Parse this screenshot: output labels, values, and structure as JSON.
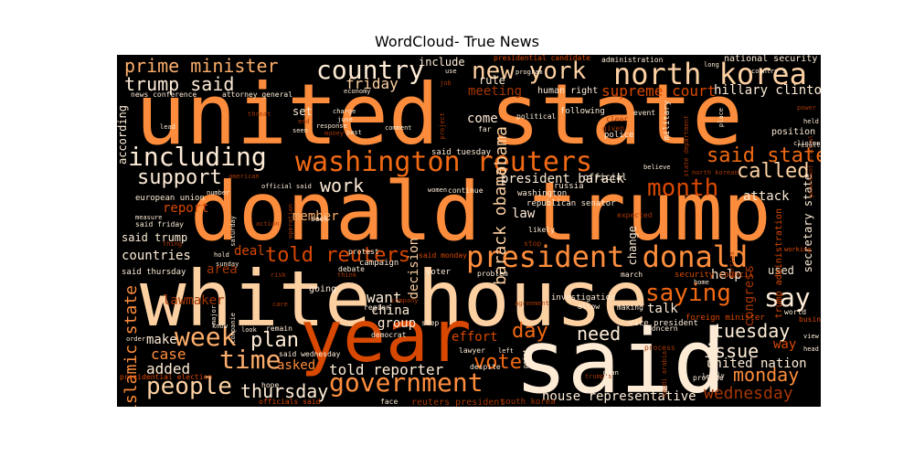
{
  "title": "WordCloud- True News",
  "colors": {
    "panel_background": "#000000",
    "palette": [
      "#fdebd6",
      "#fdd0a2",
      "#fdae6b",
      "#fd8d3c",
      "#f16913",
      "#d94801",
      "#a63603",
      "#7f2704"
    ]
  },
  "words": [
    {
      "text": "united state",
      "color": "#fd8d3c"
    },
    {
      "text": "donald trump",
      "color": "#fd8d3c"
    },
    {
      "text": "white house",
      "color": "#fdd0a2"
    },
    {
      "text": "year",
      "color": "#d94801"
    },
    {
      "text": "said",
      "color": "#fdebd6"
    },
    {
      "text": "north korea",
      "color": "#fdd0a2"
    },
    {
      "text": "washington reuters",
      "color": "#f16913"
    },
    {
      "text": "president donald",
      "color": "#fd8d3c"
    },
    {
      "text": "new york",
      "color": "#fdd0a2"
    },
    {
      "text": "country",
      "color": "#fdebd6"
    },
    {
      "text": "prime minister",
      "color": "#fdae6b"
    },
    {
      "text": "trump said",
      "color": "#fdebd6"
    },
    {
      "text": "including",
      "color": "#fdebd6"
    },
    {
      "text": "support",
      "color": "#fdebd6"
    },
    {
      "text": "government",
      "color": "#fd8d3c"
    },
    {
      "text": "people",
      "color": "#fdd0a2"
    },
    {
      "text": "week",
      "color": "#fdae6b"
    },
    {
      "text": "time",
      "color": "#fdae6b"
    },
    {
      "text": "say",
      "color": "#fdebd6"
    },
    {
      "text": "saying",
      "color": "#f16913"
    },
    {
      "text": "month",
      "color": "#d94801"
    },
    {
      "text": "called",
      "color": "#fdd0a2"
    },
    {
      "text": "said statement",
      "color": "#f16913"
    },
    {
      "text": "told reuters",
      "color": "#d94801"
    },
    {
      "text": "obama",
      "color": "#fdd0a2"
    },
    {
      "text": "barack obama",
      "color": "#fdd0a2"
    },
    {
      "text": "islamic state",
      "color": "#fd8d3c"
    },
    {
      "text": "work",
      "color": "#fdebd6"
    },
    {
      "text": "thursday",
      "color": "#fdebd6"
    },
    {
      "text": "told reporter",
      "color": "#fdebd6"
    },
    {
      "text": "vote",
      "color": "#f16913"
    },
    {
      "text": "need",
      "color": "#fdebd6"
    },
    {
      "text": "day",
      "color": "#f16913"
    },
    {
      "text": "tuesday",
      "color": "#fdebd6"
    },
    {
      "text": "issue",
      "color": "#fdebd6"
    },
    {
      "text": "monday",
      "color": "#fd8d3c"
    },
    {
      "text": "wednesday",
      "color": "#a63603"
    },
    {
      "text": "plan",
      "color": "#fdebd6"
    },
    {
      "text": "friday",
      "color": "#fdd0a2"
    },
    {
      "text": "meeting",
      "color": "#a63603"
    },
    {
      "text": "supreme court",
      "color": "#d94801"
    },
    {
      "text": "hillary clinton",
      "color": "#fdebd6"
    },
    {
      "text": "president barack",
      "color": "#fdebd6"
    },
    {
      "text": "come",
      "color": "#fdebd6"
    },
    {
      "text": "law",
      "color": "#fdebd6"
    },
    {
      "text": "want",
      "color": "#fdebd6"
    },
    {
      "text": "china",
      "color": "#fdebd6"
    },
    {
      "text": "group",
      "color": "#fdebd6"
    },
    {
      "text": "effort",
      "color": "#d94801"
    },
    {
      "text": "asked",
      "color": "#fd8d3c"
    },
    {
      "text": "added",
      "color": "#fdebd6"
    },
    {
      "text": "case",
      "color": "#fd8d3c"
    },
    {
      "text": "make",
      "color": "#fdebd6"
    },
    {
      "text": "report",
      "color": "#d94801"
    },
    {
      "text": "countries",
      "color": "#fdebd6"
    },
    {
      "text": "said trump",
      "color": "#fdebd6"
    },
    {
      "text": "member",
      "color": "#fdae6b"
    },
    {
      "text": "deal",
      "color": "#d94801"
    },
    {
      "text": "area",
      "color": "#a63603"
    },
    {
      "text": "lawmaker",
      "color": "#a63603"
    },
    {
      "text": "talk",
      "color": "#fdebd6"
    },
    {
      "text": "help",
      "color": "#fdebd6"
    },
    {
      "text": "attack",
      "color": "#fdebd6"
    },
    {
      "text": "way",
      "color": "#d94801"
    },
    {
      "text": "united nation",
      "color": "#fdebd6"
    },
    {
      "text": "house representative",
      "color": "#fdebd6"
    },
    {
      "text": "secretary state",
      "color": "#fdebd6"
    },
    {
      "text": "congress",
      "color": "#a63603"
    },
    {
      "text": "used",
      "color": "#fdebd6"
    },
    {
      "text": "change",
      "color": "#fdebd6"
    },
    {
      "text": "decision",
      "color": "#fdd0a2"
    },
    {
      "text": "according",
      "color": "#fdebd6"
    },
    {
      "text": "set",
      "color": "#fdebd6"
    },
    {
      "text": "include",
      "color": "#fdebd6"
    },
    {
      "text": "rule",
      "color": "#fdebd6"
    },
    {
      "text": "human right",
      "color": "#fdebd6"
    },
    {
      "text": "national security",
      "color": "#fdebd6"
    },
    {
      "text": "presidential candidate",
      "color": "#d94801"
    },
    {
      "text": "administration",
      "color": "#fdebd6"
    },
    {
      "text": "position",
      "color": "#fdebd6"
    },
    {
      "text": "official",
      "color": "#fdebd6"
    },
    {
      "text": "said tuesday",
      "color": "#fdebd6"
    },
    {
      "text": "washington",
      "color": "#fdebd6"
    },
    {
      "text": "russia",
      "color": "#fdebd6"
    },
    {
      "text": "republican senator",
      "color": "#fdebd6"
    },
    {
      "text": "vice president",
      "color": "#fdebd6"
    },
    {
      "text": "concern",
      "color": "#fdebd6"
    },
    {
      "text": "security council",
      "color": "#d94801"
    },
    {
      "text": "foreign minister",
      "color": "#d94801"
    },
    {
      "text": "world",
      "color": "#fdebd6"
    },
    {
      "text": "business",
      "color": "#d94801"
    },
    {
      "text": "presidential election",
      "color": "#d94801"
    },
    {
      "text": "reuters president",
      "color": "#a63603"
    },
    {
      "text": "south korea",
      "color": "#a63603"
    },
    {
      "text": "officials said",
      "color": "#d94801"
    },
    {
      "text": "european union",
      "color": "#fdebd6"
    },
    {
      "text": "said friday",
      "color": "#fdebd6"
    },
    {
      "text": "said thursday",
      "color": "#fdebd6"
    },
    {
      "text": "said wednesday",
      "color": "#fdebd6"
    },
    {
      "text": "said monday",
      "color": "#d94801"
    },
    {
      "text": "news conference",
      "color": "#fdebd6"
    },
    {
      "text": "attorney general",
      "color": "#fdebd6"
    },
    {
      "text": "going",
      "color": "#fdebd6"
    },
    {
      "text": "investigation",
      "color": "#fdebd6"
    },
    {
      "text": "following",
      "color": "#fdebd6"
    },
    {
      "text": "military",
      "color": "#fdebd6"
    },
    {
      "text": "police",
      "color": "#fdebd6"
    },
    {
      "text": "economy",
      "color": "#fdebd6"
    },
    {
      "text": "response",
      "color": "#fdebd6"
    },
    {
      "text": "campaign",
      "color": "#fdebd6"
    },
    {
      "text": "voter",
      "color": "#fdebd6"
    },
    {
      "text": "lawyer",
      "color": "#fdebd6"
    },
    {
      "text": "despite",
      "color": "#fdebd6"
    },
    {
      "text": "face",
      "color": "#fdebd6"
    },
    {
      "text": "hope",
      "color": "#fdebd6"
    },
    {
      "text": "provide",
      "color": "#fdebd6"
    },
    {
      "text": "process",
      "color": "#a63603"
    },
    {
      "text": "seek",
      "color": "#fdebd6"
    },
    {
      "text": "remain",
      "color": "#fdebd6"
    },
    {
      "text": "continue",
      "color": "#fdebd6"
    },
    {
      "text": "women",
      "color": "#fdebd6"
    },
    {
      "text": "problem",
      "color": "#fdebd6"
    },
    {
      "text": "debate",
      "color": "#fdebd6"
    },
    {
      "text": "protest",
      "color": "#fdebd6"
    },
    {
      "text": "likely",
      "color": "#fdebd6"
    },
    {
      "text": "stop",
      "color": "#a63603"
    },
    {
      "text": "expected",
      "color": "#a63603"
    },
    {
      "text": "step",
      "color": "#fdebd6"
    },
    {
      "text": "democrat",
      "color": "#fdebd6"
    },
    {
      "text": "region",
      "color": "#fdebd6"
    },
    {
      "text": "allow",
      "color": "#fdebd6"
    },
    {
      "text": "making",
      "color": "#fdebd6"
    },
    {
      "text": "march",
      "color": "#fdebd6"
    },
    {
      "text": "event",
      "color": "#fdebd6"
    },
    {
      "text": "clear",
      "color": "#a63603"
    },
    {
      "text": "given",
      "color": "#a63603"
    },
    {
      "text": "political",
      "color": "#fdebd6"
    },
    {
      "text": "far",
      "color": "#fdebd6"
    },
    {
      "text": "comment",
      "color": "#fdebd6"
    },
    {
      "text": "past",
      "color": "#fdebd6"
    },
    {
      "text": "charge",
      "color": "#fdebd6"
    },
    {
      "text": "june",
      "color": "#fdebd6"
    },
    {
      "text": "seen",
      "color": "#fdebd6"
    },
    {
      "text": "end",
      "color": "#a63603"
    },
    {
      "text": "threat",
      "color": "#a63603"
    },
    {
      "text": "lead",
      "color": "#fdebd6"
    },
    {
      "text": "number",
      "color": "#fdebd6"
    },
    {
      "text": "measure",
      "color": "#fdebd6"
    },
    {
      "text": "thing",
      "color": "#a63603"
    },
    {
      "text": "hold",
      "color": "#fdebd6"
    },
    {
      "text": "sunday",
      "color": "#fdebd6"
    },
    {
      "text": "look",
      "color": "#fdebd6"
    },
    {
      "text": "know",
      "color": "#fdebd6"
    },
    {
      "text": "order",
      "color": "#fdebd6"
    },
    {
      "text": "risk",
      "color": "#a63603"
    },
    {
      "text": "major",
      "color": "#fdebd6"
    },
    {
      "text": "care",
      "color": "#a63603"
    },
    {
      "text": "head",
      "color": "#fdebd6"
    },
    {
      "text": "view",
      "color": "#fdebd6"
    },
    {
      "text": "result",
      "color": "#fdebd6"
    },
    {
      "text": "power",
      "color": "#a63603"
    },
    {
      "text": "held",
      "color": "#fdebd6"
    },
    {
      "text": "clinton",
      "color": "#fdebd6"
    },
    {
      "text": "place",
      "color": "#fdebd6"
    },
    {
      "text": "believe",
      "color": "#fdebd6"
    },
    {
      "text": "north korean",
      "color": "#a63603"
    },
    {
      "text": "state department",
      "color": "#a63603"
    },
    {
      "text": "long",
      "color": "#fdebd6"
    },
    {
      "text": "working",
      "color": "#d94801"
    },
    {
      "text": "july",
      "color": "#fdebd6"
    },
    {
      "text": "led",
      "color": "#fdebd6"
    },
    {
      "text": "home",
      "color": "#fdebd6"
    },
    {
      "text": "job",
      "color": "#a63603"
    },
    {
      "text": "use",
      "color": "#fdebd6"
    },
    {
      "text": "program",
      "color": "#fdebd6"
    },
    {
      "text": "country's",
      "color": "#fdebd6"
    },
    {
      "text": "official said",
      "color": "#fdebd6"
    },
    {
      "text": "american",
      "color": "#a63603"
    },
    {
      "text": "saturday",
      "color": "#fdebd6"
    },
    {
      "text": "action",
      "color": "#a63603"
    },
    {
      "text": "operation",
      "color": "#a63603"
    },
    {
      "text": "think",
      "color": "#a63603"
    },
    {
      "text": "company",
      "color": "#a63603"
    },
    {
      "text": "companie",
      "color": "#fdebd6"
    },
    {
      "text": "agreement",
      "color": "#a63603"
    },
    {
      "text": "point",
      "color": "#fdebd6"
    },
    {
      "text": "left",
      "color": "#fdebd6"
    },
    {
      "text": "mean",
      "color": "#fdebd6"
    },
    {
      "text": "project",
      "color": "#a63603"
    },
    {
      "text": "money",
      "color": "#a63603"
    },
    {
      "text": "trump's",
      "color": "#a63603"
    },
    {
      "text": "trump administration",
      "color": "#d94801"
    },
    {
      "text": "saudi arabia",
      "color": "#a63603"
    },
    {
      "text": "parties",
      "color": "#a63603"
    },
    {
      "text": "government official",
      "color": "#a63603"
    }
  ]
}
